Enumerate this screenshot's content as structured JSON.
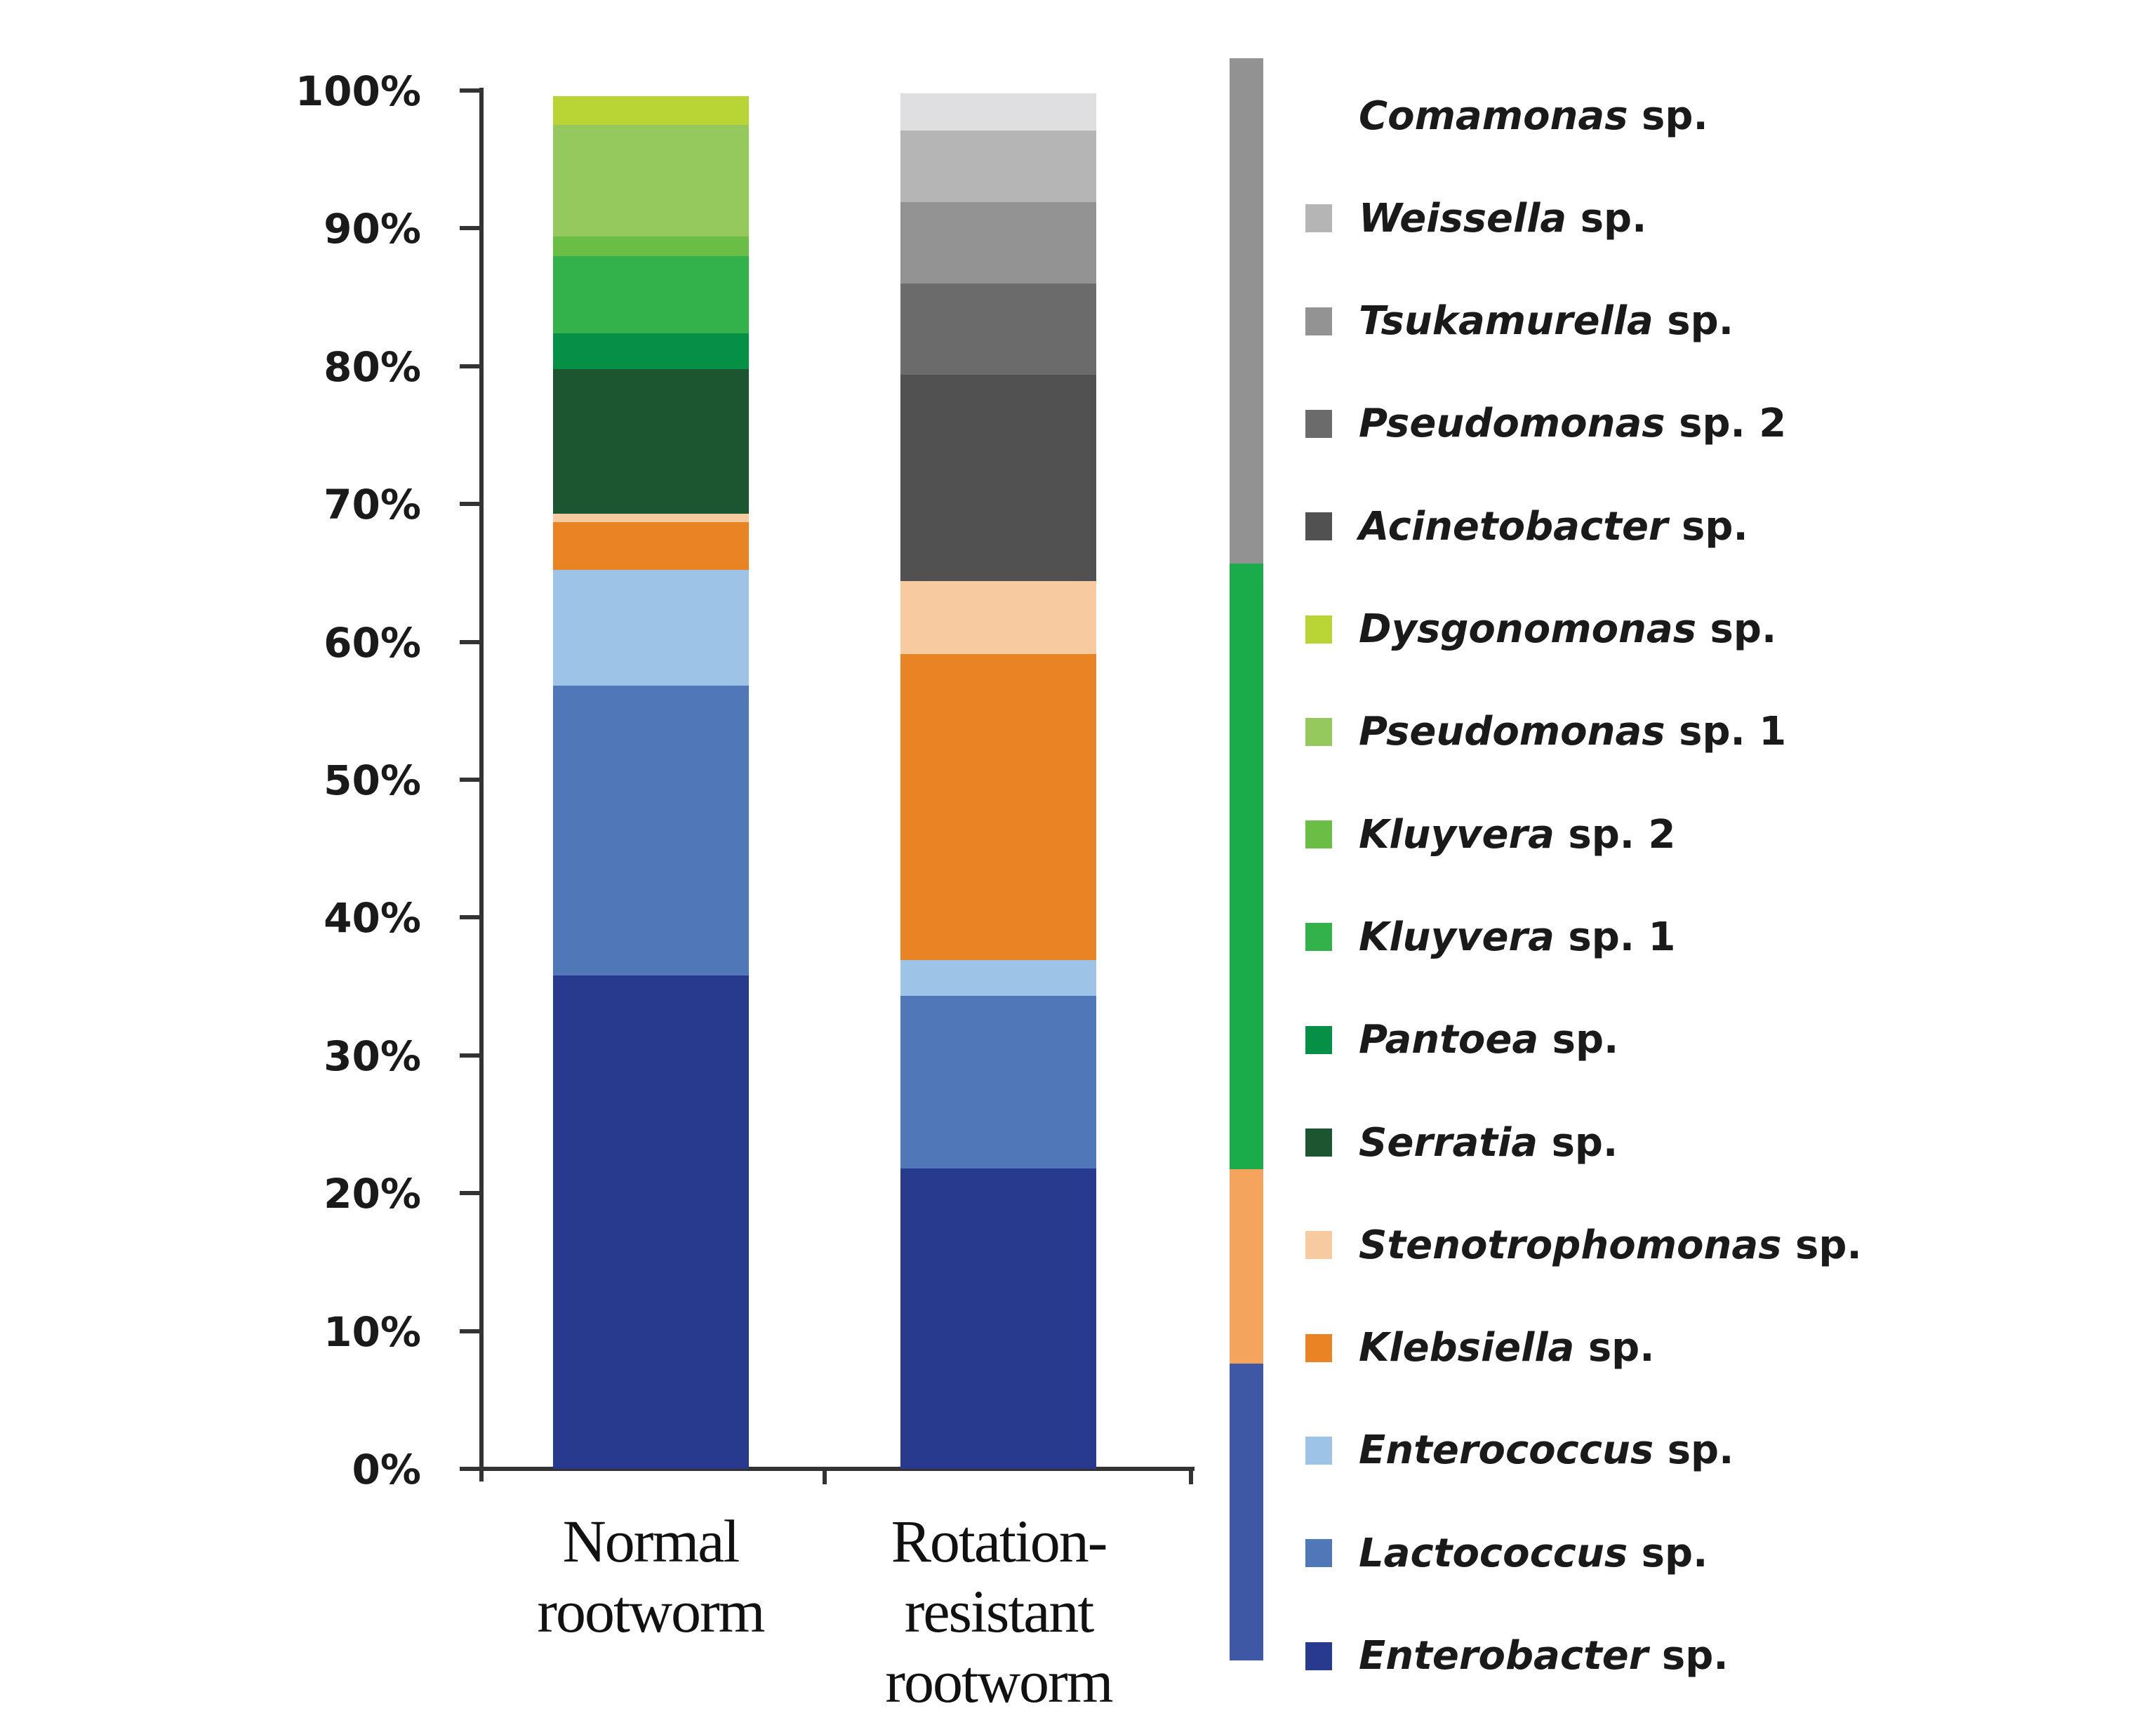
{
  "chart_data": {
    "type": "bar",
    "stacked": true,
    "normalized": true,
    "title": "",
    "xlabel": "",
    "ylabel": "",
    "ylim": [
      0,
      100
    ],
    "yticks": [
      "0%",
      "10%",
      "20%",
      "30%",
      "40%",
      "50%",
      "60%",
      "70%",
      "80%",
      "90%",
      "100%"
    ],
    "categories": [
      "Normal rootworm",
      "Rotation-resistant rootworm"
    ],
    "category_lines": [
      [
        "Normal",
        "rootworm"
      ],
      [
        "Rotation-",
        "resistant",
        "rootworm"
      ]
    ],
    "series": [
      {
        "name": "Enterobacter sp.",
        "genus": "Enterobacter",
        "suffix": "sp.",
        "color": "#283a8e",
        "values": [
          35.8,
          21.8
        ]
      },
      {
        "name": "Lactococcus sp.",
        "genus": "Lactococcus",
        "suffix": "sp.",
        "color": "#5078b8",
        "values": [
          21.0,
          12.5
        ]
      },
      {
        "name": "Enterococcus sp.",
        "genus": "Enterococcus",
        "suffix": "sp.",
        "color": "#9dc3e6",
        "values": [
          8.4,
          2.6
        ]
      },
      {
        "name": "Klebsiella sp.",
        "genus": "Klebsiella",
        "suffix": "sp.",
        "color": "#e98424",
        "values": [
          3.5,
          22.2
        ]
      },
      {
        "name": "Stenotrophomonas sp.",
        "genus": "Stenotrophomonas",
        "suffix": "sp.",
        "color": "#f7caa0",
        "values": [
          0.6,
          5.3
        ]
      },
      {
        "name": "Serratia sp.",
        "genus": "Serratia",
        "suffix": "sp.",
        "color": "#1c5630",
        "values": [
          10.5,
          0
        ]
      },
      {
        "name": "Pantoea sp.",
        "genus": "Pantoea",
        "suffix": "sp.",
        "color": "#069046",
        "values": [
          2.6,
          0
        ]
      },
      {
        "name": "Kluyvera sp. 1",
        "genus": "Kluyvera",
        "suffix": "sp. 1",
        "color": "#33b24c",
        "values": [
          5.6,
          0
        ]
      },
      {
        "name": "Kluyvera sp. 2",
        "genus": "Kluyvera",
        "suffix": "sp. 2",
        "color": "#6abd45",
        "values": [
          1.4,
          0
        ]
      },
      {
        "name": "Pseudomonas sp. 1",
        "genus": "Pseudomonas",
        "suffix": "sp. 1",
        "color": "#95c95e",
        "values": [
          8.1,
          0
        ]
      },
      {
        "name": "Dysgonomonas sp.",
        "genus": "Dysgonomonas",
        "suffix": "sp.",
        "color": "#b8d435",
        "values": [
          2.1,
          0
        ]
      },
      {
        "name": "Acinetobacter sp.",
        "genus": "Acinetobacter",
        "suffix": "sp.",
        "color": "#505150",
        "values": [
          0,
          15.0
        ]
      },
      {
        "name": "Pseudomonas sp. 2",
        "genus": "Pseudomonas",
        "suffix": "sp. 2",
        "color": "#6b6b6b",
        "values": [
          0,
          6.6
        ]
      },
      {
        "name": "Tsukamurella sp.",
        "genus": "Tsukamurella",
        "suffix": "sp.",
        "color": "#939393",
        "values": [
          0,
          5.9
        ]
      },
      {
        "name": "Weissella sp.",
        "genus": "Weissella",
        "suffix": "sp.",
        "color": "#b5b5b5",
        "values": [
          0,
          5.2
        ]
      },
      {
        "name": "Comamonas sp.",
        "genus": "Comamonas",
        "suffix": "sp.",
        "color": "#dfdfe1",
        "legend_swatch_color": "#ffffff",
        "values": [
          0,
          2.7
        ]
      }
    ],
    "legend": {
      "position": "right",
      "order_top_to_bottom": [
        "Comamonas sp.",
        "Weissella sp.",
        "Tsukamurella sp.",
        "Pseudomonas sp. 2",
        "Acinetobacter sp.",
        "Dysgonomonas sp.",
        "Pseudomonas sp. 1",
        "Kluyvera sp. 2",
        "Kluyvera sp. 1",
        "Pantoea sp.",
        "Serratia sp.",
        "Stenotrophomonas sp.",
        "Klebsiella sp.",
        "Enterococcus sp.",
        "Lactococcus sp.",
        "Enterobacter sp."
      ],
      "group_brackets": [
        {
          "color": "#929292",
          "members": [
            "Comamonas sp.",
            "Weissella sp.",
            "Tsukamurella sp.",
            "Pseudomonas sp. 2",
            "Acinetobacter sp."
          ]
        },
        {
          "color": "#1aab4b",
          "members": [
            "Dysgonomonas sp.",
            "Pseudomonas sp. 1",
            "Kluyvera sp. 2",
            "Kluyvera sp. 1",
            "Pantoea sp.",
            "Serratia sp."
          ]
        },
        {
          "color": "#f4a45c",
          "members": [
            "Stenotrophomonas sp.",
            "Klebsiella sp."
          ]
        },
        {
          "color": "#3e58a6",
          "members": [
            "Enterococcus sp.",
            "Lactococcus sp.",
            "Enterobacter sp."
          ]
        }
      ]
    },
    "grid": false
  }
}
